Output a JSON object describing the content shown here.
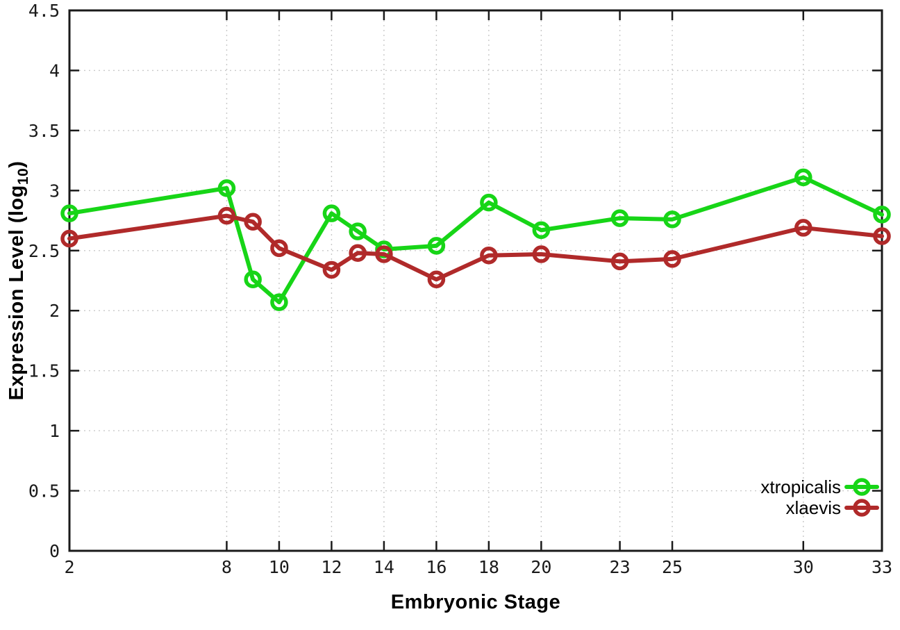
{
  "chart_data": {
    "type": "line",
    "title": "",
    "xlabel": "Embryonic Stage",
    "ylabel": "Expression Level (log10)",
    "ylabel_parts": {
      "pre": "Expression Level (log",
      "sub": "10",
      "post": ")"
    },
    "xlim": [
      2,
      33
    ],
    "ylim": [
      0,
      4.5
    ],
    "xticks": [
      2,
      8,
      10,
      12,
      14,
      16,
      18,
      20,
      23,
      25,
      30,
      33
    ],
    "yticks": [
      0,
      0.5,
      1,
      1.5,
      2,
      2.5,
      3,
      3.5,
      4,
      4.5
    ],
    "grid": true,
    "legend_position": "bottom-right",
    "x": [
      2,
      8,
      9,
      10,
      12,
      13,
      14,
      16,
      18,
      20,
      23,
      25,
      30,
      33
    ],
    "series": [
      {
        "name": "xtropicalis",
        "color": "#17d517",
        "values": [
          2.81,
          3.02,
          2.26,
          2.07,
          2.81,
          2.66,
          2.51,
          2.54,
          2.9,
          2.67,
          2.77,
          2.76,
          3.11,
          2.8
        ]
      },
      {
        "name": "xlaevis",
        "color": "#b02a2a",
        "values": [
          2.6,
          2.79,
          2.74,
          2.52,
          2.34,
          2.48,
          2.47,
          2.26,
          2.46,
          2.47,
          2.41,
          2.43,
          2.69,
          2.62
        ]
      }
    ],
    "colors": {
      "frame": "#1a1a1a",
      "grid": "#c8c8c8",
      "text": "#1a1a1a"
    }
  }
}
